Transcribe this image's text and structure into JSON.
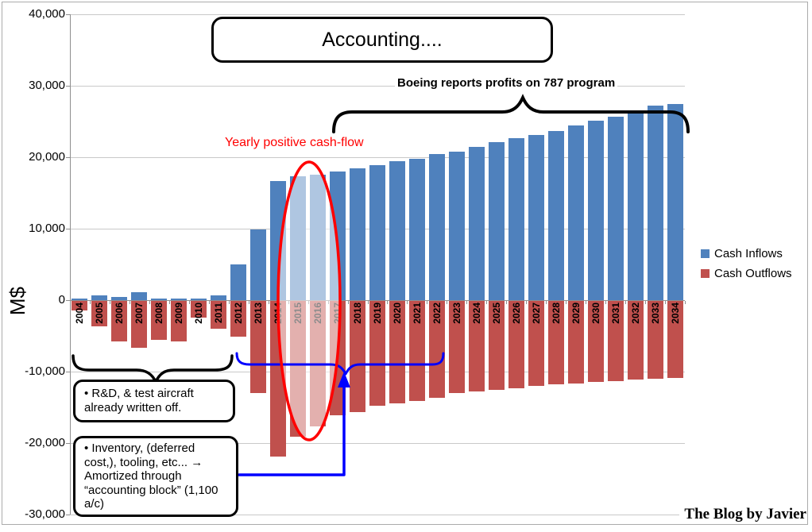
{
  "annotations": {
    "title": "Accounting....",
    "boeing_note": "Boeing reports profits on 787 program",
    "positive_cashflow_note": "Yearly positive cash-flow",
    "rd_note": "• R&D, & test aircraft already written off.",
    "inventory_note": "• Inventory, (deferred cost,), tooling,  etc... → Amortized through “accounting block” (1,100 a/c)",
    "watermark": "The Blog by Javier"
  },
  "colors": {
    "inflow": "#4f81bd",
    "outflow": "#c0504d",
    "annotation_red": "#ff0000",
    "annotation_blue": "#0000ff",
    "gridline": "#c9c9c9",
    "axis": "#8e8e8e"
  },
  "chart_data": {
    "type": "bar",
    "title": "Accounting....",
    "xlabel": "",
    "ylabel": "M$",
    "ylim": [
      -30000,
      40000
    ],
    "ytick_step": 10000,
    "grid": true,
    "legend_position": "right",
    "categories": [
      "2004",
      "2005",
      "2006",
      "2007",
      "2008",
      "2009",
      "2010",
      "2011",
      "2012",
      "2013",
      "2014",
      "2015",
      "2016",
      "2017",
      "2018",
      "2019",
      "2020",
      "2021",
      "2022",
      "2023",
      "2024",
      "2025",
      "2026",
      "2027",
      "2028",
      "2029",
      "2030",
      "2031",
      "2032",
      "2033",
      "2034"
    ],
    "series": [
      {
        "name": "Cash Inflows",
        "color": "#4f81bd",
        "values": [
          250,
          700,
          450,
          1100,
          250,
          200,
          250,
          650,
          5000,
          9900,
          16700,
          17300,
          17550,
          18000,
          18400,
          18900,
          19400,
          19800,
          20400,
          20800,
          21400,
          22100,
          22650,
          23150,
          23700,
          24450,
          25100,
          25700,
          26500,
          27200,
          27500
        ]
      },
      {
        "name": "Cash Outflows",
        "color": "#c0504d",
        "values": [
          -1300,
          -3500,
          -5700,
          -6500,
          -5400,
          -5700,
          -2300,
          -3900,
          -5000,
          -12900,
          -21800,
          -19000,
          -17500,
          -16000,
          -15500,
          -14700,
          -14300,
          -14000,
          -13600,
          -12900,
          -12700,
          -12400,
          -12200,
          -11900,
          -11700,
          -11500,
          -11300,
          -11200,
          -11000,
          -10900,
          -10800
        ]
      }
    ],
    "highlight": {
      "categories": [
        "2015",
        "2016"
      ],
      "note": "Yearly positive cash-flow"
    }
  }
}
